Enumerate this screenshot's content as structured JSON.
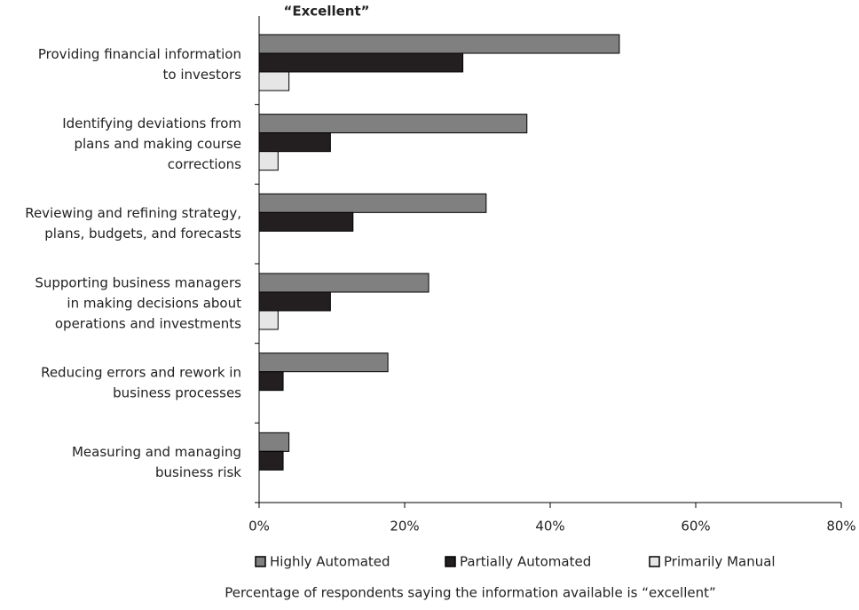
{
  "chart_data": {
    "type": "hbar",
    "title": "“Excellent”",
    "x_label": "Percentage of respondents saying the information available is “excellent”",
    "categories": [
      [
        "Providing financial information",
        "to investors"
      ],
      [
        "Identifying deviations from",
        "plans and making course",
        "corrections"
      ],
      [
        "Reviewing and refining strategy,",
        "plans, budgets, and forecasts"
      ],
      [
        "Supporting business managers",
        "in making decisions about",
        "operations and investments"
      ],
      [
        "Reducing errors and rework in",
        "business processes"
      ],
      [
        "Measuring and managing",
        "business risk"
      ]
    ],
    "series": [
      {
        "name": "Highly Automated",
        "color": "#808080",
        "values": [
          49.5,
          36.8,
          31.2,
          23.3,
          17.7,
          4.1
        ]
      },
      {
        "name": "Partially Automated",
        "color": "#231f20",
        "values": [
          28.0,
          9.8,
          12.9,
          9.8,
          3.3,
          3.3
        ]
      },
      {
        "name": "Primarily Manual",
        "color": "#e6e6e6",
        "values": [
          4.1,
          2.6,
          null,
          2.6,
          null,
          null
        ]
      }
    ],
    "xlim": [
      0,
      80
    ],
    "xticks": [
      {
        "value": 0,
        "label": "0%"
      },
      {
        "value": 20,
        "label": "20%"
      },
      {
        "value": 40,
        "label": "40%"
      },
      {
        "value": 60,
        "label": "60%"
      },
      {
        "value": 80,
        "label": "80%"
      }
    ]
  }
}
